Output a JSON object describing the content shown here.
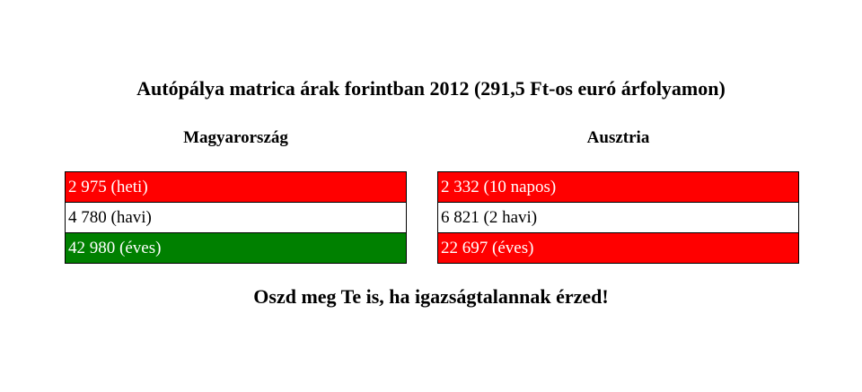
{
  "title": "Autópálya matrica árak forintban 2012 (291,5 Ft-os euró árfolyamon)",
  "tables": [
    {
      "heading": "Magyarország",
      "rows": [
        {
          "text": "2 975 (heti)",
          "color": "#ff0000",
          "text_color": "#ffffff"
        },
        {
          "text": "4 780 (havi)",
          "color": "#ffffff",
          "text_color": "#000000"
        },
        {
          "text": "42 980 (éves)",
          "color": "#008000",
          "text_color": "#ffffff"
        }
      ]
    },
    {
      "heading": "Ausztria",
      "rows": [
        {
          "text": "2 332 (10 napos)",
          "color": "#ff0000",
          "text_color": "#ffffff"
        },
        {
          "text": "6 821 (2 havi)",
          "color": "#ffffff",
          "text_color": "#000000"
        },
        {
          "text": "22 697 (éves)",
          "color": "#ff0000",
          "text_color": "#ffffff"
        }
      ]
    }
  ],
  "footer": "Oszd meg Te is, ha igazságtalannak érzed!"
}
